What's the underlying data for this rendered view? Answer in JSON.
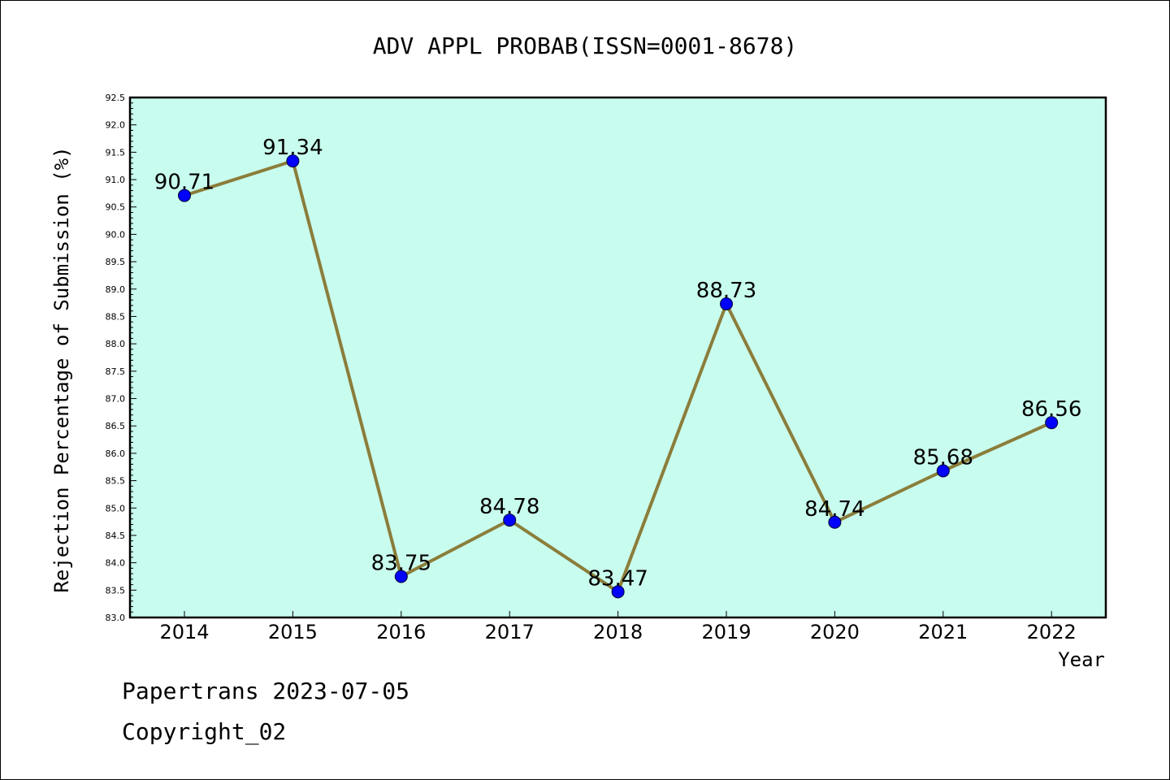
{
  "chart_data": {
    "type": "line",
    "title": "ADV APPL PROBAB(ISSN=0001-8678)",
    "xlabel": "Year",
    "ylabel": "Rejection Percentage of Submission (%)",
    "categories": [
      "2014",
      "2015",
      "2016",
      "2017",
      "2018",
      "2019",
      "2020",
      "2021",
      "2022"
    ],
    "values": [
      90.71,
      91.34,
      83.75,
      84.78,
      83.47,
      88.73,
      84.74,
      85.68,
      86.56
    ],
    "data_labels": [
      "90.71",
      "91.34",
      "83.75",
      "84.78",
      "83.47",
      "88.73",
      "84.74",
      "85.68",
      "86.56"
    ],
    "ylim": [
      83.0,
      92.5
    ],
    "ytick_step": 0.5,
    "grid": false,
    "colors": {
      "plot_background": "#c8fcee",
      "line": "#8b7d3a",
      "marker": "#0000ff",
      "axis": "#000000"
    }
  },
  "footer": {
    "line1": "Papertrans 2023-07-05",
    "line2": "Copyright_02"
  }
}
